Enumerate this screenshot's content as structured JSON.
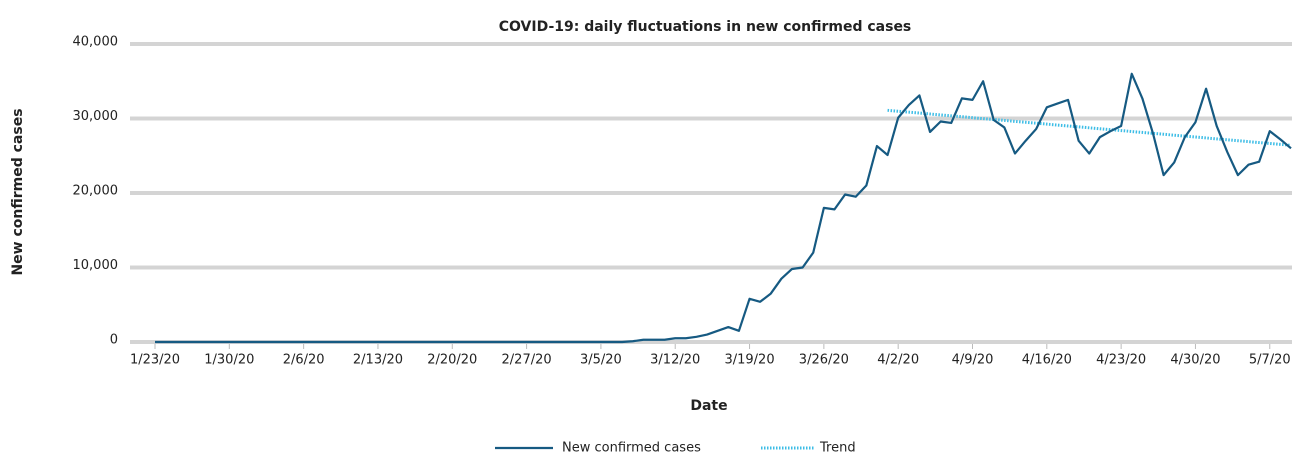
{
  "chart_data": {
    "type": "line",
    "title": "COVID-19: daily fluctuations in new confirmed cases",
    "x_label": "Date",
    "y_label": "New confirmed cases",
    "categories": [
      "1/23/20",
      null,
      null,
      null,
      null,
      null,
      null,
      "1/30/20",
      null,
      null,
      null,
      null,
      null,
      null,
      "2/6/20",
      null,
      null,
      null,
      null,
      null,
      null,
      "2/13/20",
      null,
      null,
      null,
      null,
      null,
      null,
      "2/20/20",
      null,
      null,
      null,
      null,
      null,
      null,
      "2/27/20",
      null,
      null,
      null,
      null,
      null,
      null,
      "3/5/20",
      null,
      null,
      null,
      null,
      null,
      null,
      "3/12/20",
      null,
      null,
      null,
      null,
      null,
      null,
      "3/19/20",
      null,
      null,
      null,
      null,
      null,
      null,
      "3/26/20",
      null,
      null,
      null,
      null,
      null,
      null,
      "4/2/20",
      null,
      null,
      null,
      null,
      null,
      null,
      "4/9/20",
      null,
      null,
      null,
      null,
      null,
      null,
      "4/16/20",
      null,
      null,
      null,
      null,
      null,
      null,
      "4/23/20",
      null,
      null,
      null,
      null,
      null,
      null,
      "4/30/20",
      null,
      null,
      null,
      null,
      null,
      null,
      "5/7/20",
      null,
      null
    ],
    "series": [
      {
        "name": "New confirmed cases",
        "color": "#165a82",
        "style": "solid",
        "values": [
          0,
          0,
          0,
          0,
          0,
          0,
          0,
          0,
          0,
          0,
          0,
          0,
          0,
          0,
          0,
          0,
          0,
          0,
          0,
          0,
          0,
          0,
          0,
          0,
          0,
          0,
          0,
          0,
          0,
          0,
          0,
          0,
          0,
          0,
          0,
          0,
          0,
          0,
          0,
          0,
          0,
          0,
          0,
          0,
          0,
          100,
          300,
          300,
          300,
          500,
          500,
          700,
          1000,
          1500,
          2000,
          1500,
          5800,
          5400,
          6500,
          8500,
          9800,
          10000,
          12000,
          18000,
          17800,
          19800,
          19500,
          21000,
          26300,
          25100,
          30100,
          31800,
          33100,
          28200,
          29600,
          29400,
          32700,
          32500,
          35000,
          29800,
          28800,
          25300,
          27000,
          28600,
          31500,
          32000,
          32500,
          27000,
          25300,
          27500,
          28300,
          29000,
          36000,
          32700,
          28000,
          22400,
          24100,
          27500,
          29500,
          34000,
          29000,
          25500,
          22400,
          23800,
          24200,
          28300,
          27200,
          26000
        ]
      },
      {
        "name": "Trend",
        "color": "#3dbde6",
        "style": "dotted",
        "values": [
          null,
          null,
          null,
          null,
          null,
          null,
          null,
          null,
          null,
          null,
          null,
          null,
          null,
          null,
          null,
          null,
          null,
          null,
          null,
          null,
          null,
          null,
          null,
          null,
          null,
          null,
          null,
          null,
          null,
          null,
          null,
          null,
          null,
          null,
          null,
          null,
          null,
          null,
          null,
          null,
          null,
          null,
          null,
          null,
          null,
          null,
          null,
          null,
          null,
          null,
          null,
          null,
          null,
          null,
          null,
          null,
          null,
          null,
          null,
          null,
          null,
          null,
          null,
          null,
          null,
          null,
          null,
          null,
          null,
          31100,
          30976,
          30853,
          30729,
          30605,
          30482,
          30358,
          30234,
          30111,
          29987,
          29863,
          29739,
          29616,
          29492,
          29368,
          29245,
          29121,
          28997,
          28874,
          28750,
          28626,
          28503,
          28379,
          28255,
          28132,
          28008,
          27884,
          27761,
          27637,
          27513,
          27389,
          27266,
          27142,
          27018,
          26895,
          26771,
          26647,
          26524,
          26400
        ]
      }
    ],
    "ylim": [
      0,
      40000
    ],
    "yticks": [
      0,
      {
        "value": 10000,
        "label": "10,000"
      },
      {
        "value": 20000,
        "label": "20,000"
      },
      {
        "value": 30000,
        "label": "30,000"
      },
      {
        "value": 40000,
        "label": "40,000"
      }
    ],
    "grid": true,
    "legend": "bottom"
  }
}
